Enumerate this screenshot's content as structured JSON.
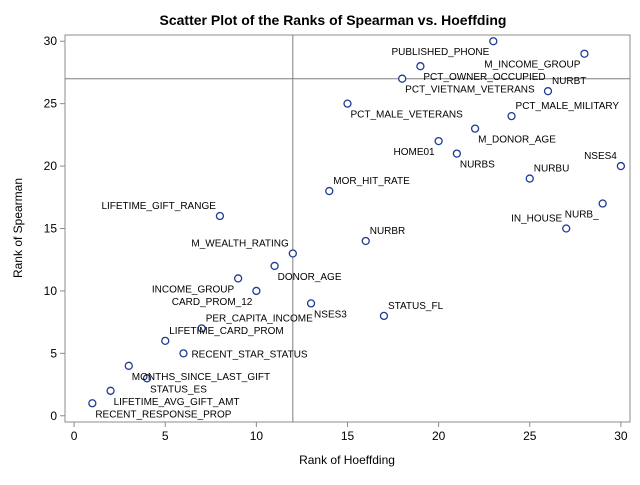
{
  "chart_data": {
    "type": "scatter",
    "title": "Scatter Plot of the Ranks of Spearman vs. Hoeffding",
    "xlabel": "Rank of Hoeffding",
    "ylabel": "Rank of Spearman",
    "xlim": [
      -0.5,
      30.5
    ],
    "ylim": [
      -0.5,
      30.5
    ],
    "xticks": [
      0,
      5,
      10,
      15,
      20,
      25,
      30
    ],
    "yticks": [
      0,
      5,
      10,
      15,
      20,
      25,
      30
    ],
    "reference_lines": {
      "x": 12,
      "y": 27
    },
    "grid": false,
    "marker": "open-circle",
    "colors": {
      "marker": "#1f3a93",
      "axis": "#8c8c8c",
      "reference": "#7f7f7f",
      "text": "#000000"
    },
    "points": [
      {
        "label": "RECENT_RESPONSE_PROP",
        "x": 1,
        "y": 1,
        "pos": "below-right"
      },
      {
        "label": "LIFETIME_AVG_GIFT_AMT",
        "x": 2,
        "y": 2,
        "pos": "below-right"
      },
      {
        "label": "MONTHS_SINCE_LAST_GIFT",
        "x": 3,
        "y": 4,
        "pos": "below-right"
      },
      {
        "label": "STATUS_ES",
        "x": 4,
        "y": 3,
        "pos": "below-right"
      },
      {
        "label": "RECENT_STAR_STATUS",
        "x": 6,
        "y": 5,
        "pos": "right"
      },
      {
        "label": "LIFETIME_CARD_PROM",
        "x": 5,
        "y": 6,
        "pos": "above-right"
      },
      {
        "label": "PER_CAPITA_INCOME",
        "x": 7,
        "y": 7,
        "pos": "above-right"
      },
      {
        "label": "CARD_PROM_12",
        "x": 10,
        "y": 10,
        "pos": "below-left"
      },
      {
        "label": "INCOME_GROUP",
        "x": 9,
        "y": 11,
        "pos": "below-left"
      },
      {
        "label": "DONOR_AGE",
        "x": 11,
        "y": 12,
        "pos": "below-right"
      },
      {
        "label": "M_WEALTH_RATING",
        "x": 12,
        "y": 13,
        "pos": "above-left"
      },
      {
        "label": "LIFETIME_GIFT_RANGE",
        "x": 8,
        "y": 16,
        "pos": "above-left"
      },
      {
        "label": "NSES3",
        "x": 13,
        "y": 9,
        "pos": "below-right"
      },
      {
        "label": "NURBR",
        "x": 16,
        "y": 14,
        "pos": "above-right"
      },
      {
        "label": "STATUS_FL",
        "x": 17,
        "y": 8,
        "pos": "above-right"
      },
      {
        "label": "MOR_HIT_RATE",
        "x": 14,
        "y": 18,
        "pos": "above-right"
      },
      {
        "label": "HOME01",
        "x": 20,
        "y": 22,
        "pos": "below-left"
      },
      {
        "label": "NURBS",
        "x": 21,
        "y": 21,
        "pos": "below-right"
      },
      {
        "label": "M_DONOR_AGE",
        "x": 22,
        "y": 23,
        "pos": "below-right"
      },
      {
        "label": "PCT_MALE_VETERANS",
        "x": 15,
        "y": 25,
        "pos": "below-right"
      },
      {
        "label": "PCT_MALE_MILITARY",
        "x": 24,
        "y": 24,
        "pos": "above-right"
      },
      {
        "label": "NURBU",
        "x": 25,
        "y": 19,
        "pos": "above-right"
      },
      {
        "label": "NSES4",
        "x": 30,
        "y": 20,
        "pos": "above-left"
      },
      {
        "label": "IN_HOUSE",
        "x": 27,
        "y": 15,
        "pos": "above-left"
      },
      {
        "label": "NURB_",
        "x": 29,
        "y": 17,
        "pos": "below-left"
      },
      {
        "label": "NURBT",
        "x": 26,
        "y": 26,
        "pos": "above-right"
      },
      {
        "label": "PCT_VIETNAM_VETERANS",
        "x": 18,
        "y": 27,
        "pos": "below-right"
      },
      {
        "label": "PCT_OWNER_OCCUPIED",
        "x": 19,
        "y": 28,
        "pos": "below-right"
      },
      {
        "label": "M_INCOME_GROUP",
        "x": 28,
        "y": 29,
        "pos": "below-left"
      },
      {
        "label": "PUBLISHED_PHONE",
        "x": 23,
        "y": 30,
        "pos": "below-left"
      }
    ]
  }
}
